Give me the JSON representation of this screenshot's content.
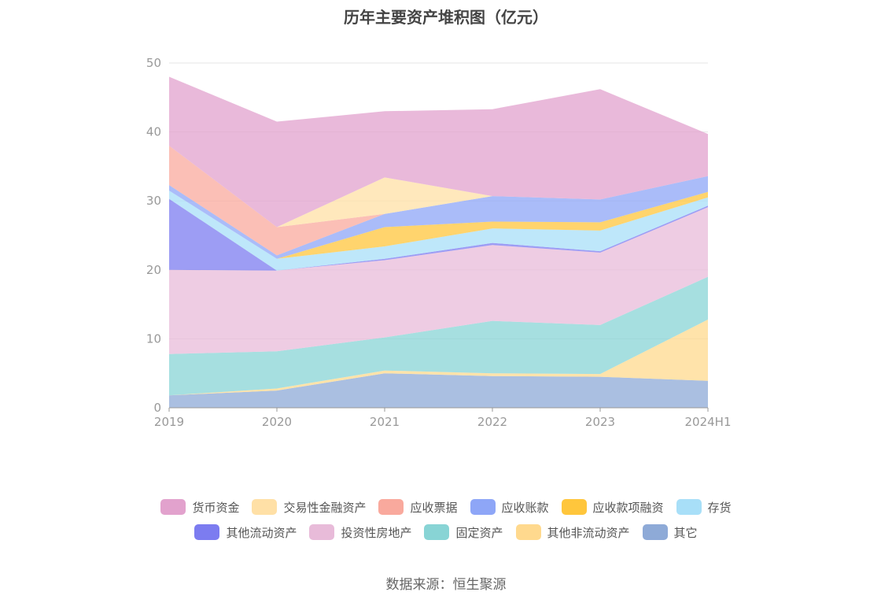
{
  "title": "历年主要资产堆积图（亿元）",
  "source": "数据来源：恒生聚源",
  "chart_data": {
    "type": "area",
    "stacked": true,
    "categories": [
      "2019",
      "2020",
      "2021",
      "2022",
      "2023",
      "2024H1"
    ],
    "ylim": [
      0,
      50
    ],
    "yticks": [
      0,
      10,
      20,
      30,
      40,
      50
    ],
    "grid": true,
    "legend_position": "bottom",
    "series": [
      {
        "name": "其它",
        "color": "#8eaad7",
        "values": [
          1.8,
          2.5,
          5.0,
          4.6,
          4.5,
          3.9
        ]
      },
      {
        "name": "其他非流动资产",
        "color": "#ffd98e",
        "values": [
          0.0,
          0.3,
          0.4,
          0.4,
          0.4,
          8.9
        ]
      },
      {
        "name": "固定资产",
        "color": "#88d4d5",
        "values": [
          6.0,
          5.4,
          4.8,
          7.6,
          7.1,
          6.2
        ]
      },
      {
        "name": "投资性房地产",
        "color": "#e8bbd9",
        "values": [
          12.2,
          11.7,
          11.2,
          11.0,
          10.5,
          10.1
        ]
      },
      {
        "name": "其他流动资产",
        "color": "#7c7cf0",
        "values": [
          10.3,
          0.0,
          0.2,
          0.3,
          0.2,
          0.2
        ]
      },
      {
        "name": "存货",
        "color": "#a8dff8",
        "values": [
          1.2,
          1.7,
          1.8,
          2.1,
          3.0,
          1.2
        ]
      },
      {
        "name": "应收款项融资",
        "color": "#ffc63c",
        "values": [
          0.0,
          0.0,
          2.8,
          1.0,
          1.2,
          0.8
        ]
      },
      {
        "name": "应收账款",
        "color": "#8ea6f7",
        "values": [
          0.8,
          0.5,
          1.9,
          3.7,
          3.3,
          2.3
        ]
      },
      {
        "name": "应收票据",
        "color": "#f9a99d",
        "values": [
          5.7,
          4.1,
          0.0,
          0.0,
          0.0,
          0.0
        ]
      },
      {
        "name": "交易性金融资产",
        "color": "#ffe0a6",
        "values": [
          0.0,
          0.0,
          5.3,
          0.0,
          0.0,
          0.0
        ]
      },
      {
        "name": "货币资金",
        "color": "#e2a2cd",
        "values": [
          10.0,
          15.3,
          9.6,
          12.6,
          16.0,
          6.1
        ]
      }
    ],
    "legend_rows": [
      [
        "货币资金",
        "交易性金融资产",
        "应收票据",
        "应收账款",
        "应收款项融资",
        "存货"
      ],
      [
        "其他流动资产",
        "投资性房地产",
        "固定资产",
        "其他非流动资产",
        "其它"
      ]
    ]
  }
}
